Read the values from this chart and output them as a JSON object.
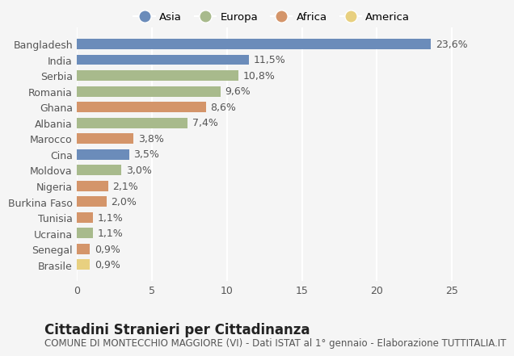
{
  "countries": [
    "Bangladesh",
    "India",
    "Serbia",
    "Romania",
    "Ghana",
    "Albania",
    "Marocco",
    "Cina",
    "Moldova",
    "Nigeria",
    "Burkina Faso",
    "Tunisia",
    "Ucraina",
    "Senegal",
    "Brasile"
  ],
  "values": [
    23.6,
    11.5,
    10.8,
    9.6,
    8.6,
    7.4,
    3.8,
    3.5,
    3.0,
    2.1,
    2.0,
    1.1,
    1.1,
    0.9,
    0.9
  ],
  "labels": [
    "23,6%",
    "11,5%",
    "10,8%",
    "9,6%",
    "8,6%",
    "7,4%",
    "3,8%",
    "3,5%",
    "3,0%",
    "2,1%",
    "2,0%",
    "1,1%",
    "1,1%",
    "0,9%",
    "0,9%"
  ],
  "regions": [
    "Asia",
    "Asia",
    "Europa",
    "Europa",
    "Africa",
    "Europa",
    "Africa",
    "Asia",
    "Europa",
    "Africa",
    "Africa",
    "Africa",
    "Europa",
    "Africa",
    "America"
  ],
  "colors": {
    "Asia": "#6b8cba",
    "Europa": "#a8ba8c",
    "Africa": "#d4956a",
    "America": "#e8d080"
  },
  "legend_labels": [
    "Asia",
    "Europa",
    "Africa",
    "America"
  ],
  "legend_colors": [
    "#6b8cba",
    "#a8ba8c",
    "#d4956a",
    "#e8d080"
  ],
  "xlim": [
    0,
    26
  ],
  "xticks": [
    0,
    5,
    10,
    15,
    20,
    25
  ],
  "title": "Cittadini Stranieri per Cittadinanza",
  "subtitle": "COMUNE DI MONTECCHIO MAGGIORE (VI) - Dati ISTAT al 1° gennaio - Elaborazione TUTTITALIA.IT",
  "bg_color": "#f5f5f5",
  "grid_color": "#ffffff",
  "bar_height": 0.65,
  "label_fontsize": 9,
  "ytick_fontsize": 9,
  "xtick_fontsize": 9,
  "title_fontsize": 12,
  "subtitle_fontsize": 8.5
}
